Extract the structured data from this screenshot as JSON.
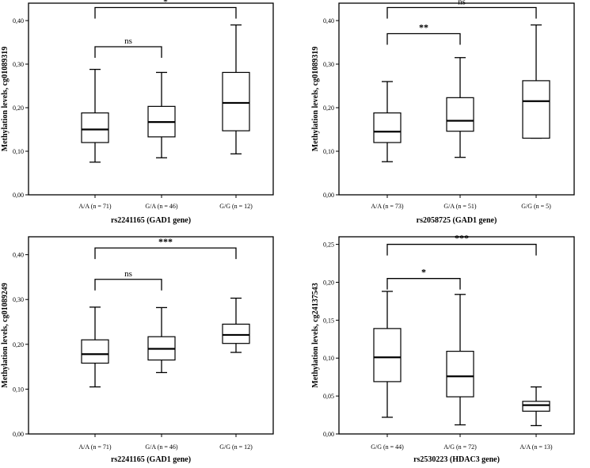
{
  "chart_data": [
    {
      "type": "boxplot",
      "ylabel": "Methylation levels, cg01089319",
      "xlabel": "rs2241165 (GAD1 gene)",
      "ylim": [
        0,
        0.44
      ],
      "yticks": [
        0.0,
        0.1,
        0.2,
        0.3,
        0.4
      ],
      "ytick_labels": [
        "0,00",
        "0,10",
        "0,20",
        "0,30",
        "0,40"
      ],
      "categories": [
        "A/A (n = 71)",
        "G/A (n = 46)",
        "G/G (n = 12)"
      ],
      "boxes": [
        {
          "whisker_low": 0.075,
          "q1": 0.12,
          "median": 0.15,
          "q3": 0.188,
          "whisker_high": 0.288
        },
        {
          "whisker_low": 0.085,
          "q1": 0.133,
          "median": 0.167,
          "q3": 0.203,
          "whisker_high": 0.281
        },
        {
          "whisker_low": 0.094,
          "q1": 0.147,
          "median": 0.211,
          "q3": 0.281,
          "whisker_high": 0.39
        }
      ],
      "annotations": [
        {
          "from": 0,
          "to": 1,
          "label": "ns",
          "level": 0.34
        },
        {
          "from": 0,
          "to": 2,
          "label": "*",
          "level": 0.43
        }
      ]
    },
    {
      "type": "boxplot",
      "ylabel": "Methylation levels, cg01089319",
      "xlabel": "rs2058725 (GAD1 gene)",
      "ylim": [
        0,
        0.44
      ],
      "yticks": [
        0.0,
        0.1,
        0.2,
        0.3,
        0.4
      ],
      "ytick_labels": [
        "0,00",
        "0,10",
        "0,20",
        "0,30",
        "0,40"
      ],
      "categories": [
        "A/A (n = 73)",
        "G/A (n = 51)",
        "G/G (n = 5)"
      ],
      "boxes": [
        {
          "whisker_low": 0.076,
          "q1": 0.12,
          "median": 0.145,
          "q3": 0.188,
          "whisker_high": 0.26
        },
        {
          "whisker_low": 0.086,
          "q1": 0.146,
          "median": 0.17,
          "q3": 0.223,
          "whisker_high": 0.315
        },
        {
          "whisker_low": 0.13,
          "q1": 0.13,
          "median": 0.215,
          "q3": 0.262,
          "whisker_high": 0.39
        }
      ],
      "annotations": [
        {
          "from": 0,
          "to": 1,
          "label": "**",
          "level": 0.37
        },
        {
          "from": 0,
          "to": 2,
          "label": "ns",
          "level": 0.43
        }
      ]
    },
    {
      "type": "boxplot",
      "ylabel": "Methylation levels, cg01089249",
      "xlabel": "rs2241165 (GAD1 gene)",
      "ylim": [
        0,
        0.44
      ],
      "yticks": [
        0.0,
        0.1,
        0.2,
        0.3,
        0.4
      ],
      "ytick_labels": [
        "0,00",
        "0,10",
        "0,20",
        "0,30",
        "0,40"
      ],
      "categories": [
        "A/A (n = 71)",
        "G/A (n = 46)",
        "G/G (n = 12)"
      ],
      "boxes": [
        {
          "whisker_low": 0.105,
          "q1": 0.158,
          "median": 0.178,
          "q3": 0.21,
          "whisker_high": 0.283
        },
        {
          "whisker_low": 0.137,
          "q1": 0.165,
          "median": 0.19,
          "q3": 0.217,
          "whisker_high": 0.282
        },
        {
          "whisker_low": 0.182,
          "q1": 0.202,
          "median": 0.221,
          "q3": 0.245,
          "whisker_high": 0.303
        }
      ],
      "annotations": [
        {
          "from": 0,
          "to": 1,
          "label": "ns",
          "level": 0.345
        },
        {
          "from": 0,
          "to": 2,
          "label": "***",
          "level": 0.415
        }
      ]
    },
    {
      "type": "boxplot",
      "ylabel": "Methylation levels, cg24137543",
      "xlabel": "rs2530223 (HDAC3 gene)",
      "ylim": [
        0,
        0.26
      ],
      "yticks": [
        0.0,
        0.05,
        0.1,
        0.15,
        0.2,
        0.25
      ],
      "ytick_labels": [
        "0,00",
        "0,05",
        "0,10",
        "0,15",
        "0,20",
        "0,25"
      ],
      "categories": [
        "G/G (n = 44)",
        "A/G (n = 72)",
        "A/A (n = 13)"
      ],
      "boxes": [
        {
          "whisker_low": 0.022,
          "q1": 0.069,
          "median": 0.101,
          "q3": 0.139,
          "whisker_high": 0.188
        },
        {
          "whisker_low": 0.012,
          "q1": 0.049,
          "median": 0.076,
          "q3": 0.109,
          "whisker_high": 0.184
        },
        {
          "whisker_low": 0.011,
          "q1": 0.03,
          "median": 0.038,
          "q3": 0.043,
          "whisker_high": 0.062
        }
      ],
      "annotations": [
        {
          "from": 0,
          "to": 1,
          "label": "*",
          "level": 0.205
        },
        {
          "from": 0,
          "to": 2,
          "label": "***",
          "level": 0.25
        }
      ]
    }
  ]
}
